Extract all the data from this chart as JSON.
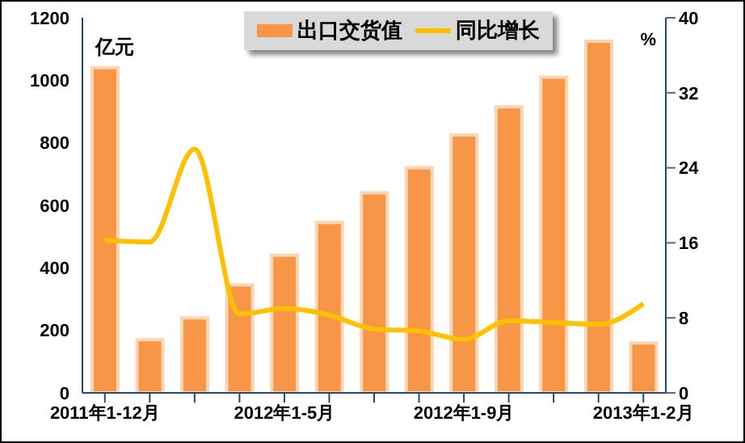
{
  "chart_data": {
    "type": "bar",
    "categories": [
      "2011年1-12月",
      null,
      null,
      null,
      "2012年1-5月",
      null,
      null,
      null,
      "2012年1-9月",
      null,
      null,
      null,
      "2013年1-2月"
    ],
    "series": [
      {
        "name": "出口交货值",
        "color": "#f79646",
        "values": [
          1040,
          170,
          240,
          345,
          440,
          545,
          640,
          720,
          825,
          915,
          1010,
          1125,
          160
        ]
      },
      {
        "name": "同比增长",
        "type": "line",
        "axis": "y2",
        "color": "#ffc000",
        "values": [
          16.3,
          16.1,
          26,
          8.4,
          9.0,
          8.3,
          6.8,
          6.6,
          5.7,
          7.7,
          7.5,
          7.3,
          9.5
        ]
      }
    ],
    "ylabel": "亿元",
    "y2label": "%",
    "ylim": [
      0,
      1200
    ],
    "yticks": [
      0,
      200,
      400,
      600,
      800,
      1000,
      1200
    ],
    "y2lim": [
      0,
      40
    ],
    "y2ticks": [
      0,
      8,
      16,
      24,
      32,
      40
    ],
    "grid": false,
    "legend": "top",
    "marker": "none",
    "line_style": "solid"
  }
}
